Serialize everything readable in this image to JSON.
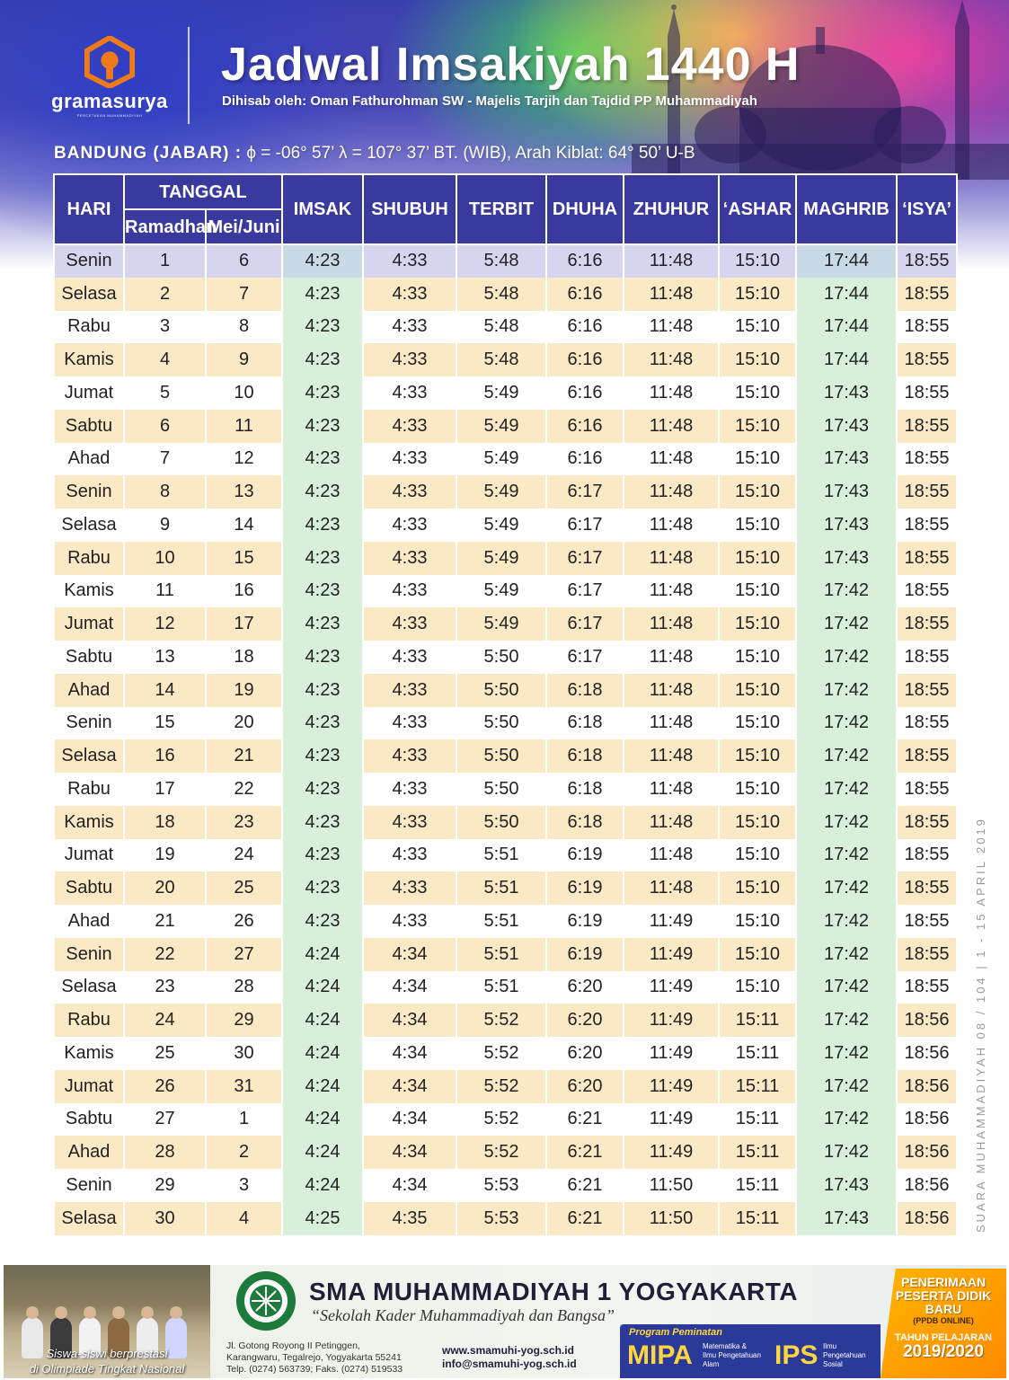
{
  "header": {
    "logo_name": "gramasurya",
    "logo_sub": "PERCETAKAN MUHAMMADIYAH",
    "title": "Jadwal Imsakiyah 1440 H",
    "subtitle": "Dihisab oleh: Oman Fathurohman SW - Majelis Tarjih dan Tajdid PP Muhammadiyah"
  },
  "location": {
    "city": "BANDUNG (JABAR) :",
    "coords": "ϕ = -06° 57’  λ = 107° 37’  BT. (WIB), Arah Kiblat: 64° 50’ U-B"
  },
  "table": {
    "headers": {
      "hari": "HARI",
      "tanggal": "TANGGAL",
      "ramadhan": "Ramadhan",
      "mei_juni": "Mei/Juni",
      "imsak": "IMSAK",
      "shubuh": "SHUBUH",
      "terbit": "TERBIT",
      "dhuha": "DHUHA",
      "zhuhur": "ZHUHUR",
      "ashar": "‘ASHAR",
      "maghrib": "MAGHRIB",
      "isya": "‘ISYA’"
    },
    "rows": [
      {
        "hari": "Senin",
        "ramadhan": "1",
        "masehi": "6",
        "imsak": "4:23",
        "shubuh": "4:33",
        "terbit": "5:48",
        "dhuha": "6:16",
        "zhuhur": "11:48",
        "ashar": "15:10",
        "maghrib": "17:44",
        "isya": "18:55"
      },
      {
        "hari": "Selasa",
        "ramadhan": "2",
        "masehi": "7",
        "imsak": "4:23",
        "shubuh": "4:33",
        "terbit": "5:48",
        "dhuha": "6:16",
        "zhuhur": "11:48",
        "ashar": "15:10",
        "maghrib": "17:44",
        "isya": "18:55"
      },
      {
        "hari": "Rabu",
        "ramadhan": "3",
        "masehi": "8",
        "imsak": "4:23",
        "shubuh": "4:33",
        "terbit": "5:48",
        "dhuha": "6:16",
        "zhuhur": "11:48",
        "ashar": "15:10",
        "maghrib": "17:44",
        "isya": "18:55"
      },
      {
        "hari": "Kamis",
        "ramadhan": "4",
        "masehi": "9",
        "imsak": "4:23",
        "shubuh": "4:33",
        "terbit": "5:48",
        "dhuha": "6:16",
        "zhuhur": "11:48",
        "ashar": "15:10",
        "maghrib": "17:44",
        "isya": "18:55"
      },
      {
        "hari": "Jumat",
        "ramadhan": "5",
        "masehi": "10",
        "imsak": "4:23",
        "shubuh": "4:33",
        "terbit": "5:49",
        "dhuha": "6:16",
        "zhuhur": "11:48",
        "ashar": "15:10",
        "maghrib": "17:43",
        "isya": "18:55"
      },
      {
        "hari": "Sabtu",
        "ramadhan": "6",
        "masehi": "11",
        "imsak": "4:23",
        "shubuh": "4:33",
        "terbit": "5:49",
        "dhuha": "6:16",
        "zhuhur": "11:48",
        "ashar": "15:10",
        "maghrib": "17:43",
        "isya": "18:55"
      },
      {
        "hari": "Ahad",
        "ramadhan": "7",
        "masehi": "12",
        "imsak": "4:23",
        "shubuh": "4:33",
        "terbit": "5:49",
        "dhuha": "6:16",
        "zhuhur": "11:48",
        "ashar": "15:10",
        "maghrib": "17:43",
        "isya": "18:55"
      },
      {
        "hari": "Senin",
        "ramadhan": "8",
        "masehi": "13",
        "imsak": "4:23",
        "shubuh": "4:33",
        "terbit": "5:49",
        "dhuha": "6:17",
        "zhuhur": "11:48",
        "ashar": "15:10",
        "maghrib": "17:43",
        "isya": "18:55"
      },
      {
        "hari": "Selasa",
        "ramadhan": "9",
        "masehi": "14",
        "imsak": "4:23",
        "shubuh": "4:33",
        "terbit": "5:49",
        "dhuha": "6:17",
        "zhuhur": "11:48",
        "ashar": "15:10",
        "maghrib": "17:43",
        "isya": "18:55"
      },
      {
        "hari": "Rabu",
        "ramadhan": "10",
        "masehi": "15",
        "imsak": "4:23",
        "shubuh": "4:33",
        "terbit": "5:49",
        "dhuha": "6:17",
        "zhuhur": "11:48",
        "ashar": "15:10",
        "maghrib": "17:43",
        "isya": "18:55"
      },
      {
        "hari": "Kamis",
        "ramadhan": "11",
        "masehi": "16",
        "imsak": "4:23",
        "shubuh": "4:33",
        "terbit": "5:49",
        "dhuha": "6:17",
        "zhuhur": "11:48",
        "ashar": "15:10",
        "maghrib": "17:42",
        "isya": "18:55"
      },
      {
        "hari": "Jumat",
        "ramadhan": "12",
        "masehi": "17",
        "imsak": "4:23",
        "shubuh": "4:33",
        "terbit": "5:49",
        "dhuha": "6:17",
        "zhuhur": "11:48",
        "ashar": "15:10",
        "maghrib": "17:42",
        "isya": "18:55"
      },
      {
        "hari": "Sabtu",
        "ramadhan": "13",
        "masehi": "18",
        "imsak": "4:23",
        "shubuh": "4:33",
        "terbit": "5:50",
        "dhuha": "6:17",
        "zhuhur": "11:48",
        "ashar": "15:10",
        "maghrib": "17:42",
        "isya": "18:55"
      },
      {
        "hari": "Ahad",
        "ramadhan": "14",
        "masehi": "19",
        "imsak": "4:23",
        "shubuh": "4:33",
        "terbit": "5:50",
        "dhuha": "6:18",
        "zhuhur": "11:48",
        "ashar": "15:10",
        "maghrib": "17:42",
        "isya": "18:55"
      },
      {
        "hari": "Senin",
        "ramadhan": "15",
        "masehi": "20",
        "imsak": "4:23",
        "shubuh": "4:33",
        "terbit": "5:50",
        "dhuha": "6:18",
        "zhuhur": "11:48",
        "ashar": "15:10",
        "maghrib": "17:42",
        "isya": "18:55"
      },
      {
        "hari": "Selasa",
        "ramadhan": "16",
        "masehi": "21",
        "imsak": "4:23",
        "shubuh": "4:33",
        "terbit": "5:50",
        "dhuha": "6:18",
        "zhuhur": "11:48",
        "ashar": "15:10",
        "maghrib": "17:42",
        "isya": "18:55"
      },
      {
        "hari": "Rabu",
        "ramadhan": "17",
        "masehi": "22",
        "imsak": "4:23",
        "shubuh": "4:33",
        "terbit": "5:50",
        "dhuha": "6:18",
        "zhuhur": "11:48",
        "ashar": "15:10",
        "maghrib": "17:42",
        "isya": "18:55"
      },
      {
        "hari": "Kamis",
        "ramadhan": "18",
        "masehi": "23",
        "imsak": "4:23",
        "shubuh": "4:33",
        "terbit": "5:50",
        "dhuha": "6:18",
        "zhuhur": "11:48",
        "ashar": "15:10",
        "maghrib": "17:42",
        "isya": "18:55"
      },
      {
        "hari": "Jumat",
        "ramadhan": "19",
        "masehi": "24",
        "imsak": "4:23",
        "shubuh": "4:33",
        "terbit": "5:51",
        "dhuha": "6:19",
        "zhuhur": "11:48",
        "ashar": "15:10",
        "maghrib": "17:42",
        "isya": "18:55"
      },
      {
        "hari": "Sabtu",
        "ramadhan": "20",
        "masehi": "25",
        "imsak": "4:23",
        "shubuh": "4:33",
        "terbit": "5:51",
        "dhuha": "6:19",
        "zhuhur": "11:48",
        "ashar": "15:10",
        "maghrib": "17:42",
        "isya": "18:55"
      },
      {
        "hari": "Ahad",
        "ramadhan": "21",
        "masehi": "26",
        "imsak": "4:23",
        "shubuh": "4:33",
        "terbit": "5:51",
        "dhuha": "6:19",
        "zhuhur": "11:49",
        "ashar": "15:10",
        "maghrib": "17:42",
        "isya": "18:55"
      },
      {
        "hari": "Senin",
        "ramadhan": "22",
        "masehi": "27",
        "imsak": "4:24",
        "shubuh": "4:34",
        "terbit": "5:51",
        "dhuha": "6:19",
        "zhuhur": "11:49",
        "ashar": "15:10",
        "maghrib": "17:42",
        "isya": "18:55"
      },
      {
        "hari": "Selasa",
        "ramadhan": "23",
        "masehi": "28",
        "imsak": "4:24",
        "shubuh": "4:34",
        "terbit": "5:51",
        "dhuha": "6:20",
        "zhuhur": "11:49",
        "ashar": "15:10",
        "maghrib": "17:42",
        "isya": "18:55"
      },
      {
        "hari": "Rabu",
        "ramadhan": "24",
        "masehi": "29",
        "imsak": "4:24",
        "shubuh": "4:34",
        "terbit": "5:52",
        "dhuha": "6:20",
        "zhuhur": "11:49",
        "ashar": "15:11",
        "maghrib": "17:42",
        "isya": "18:56"
      },
      {
        "hari": "Kamis",
        "ramadhan": "25",
        "masehi": "30",
        "imsak": "4:24",
        "shubuh": "4:34",
        "terbit": "5:52",
        "dhuha": "6:20",
        "zhuhur": "11:49",
        "ashar": "15:11",
        "maghrib": "17:42",
        "isya": "18:56"
      },
      {
        "hari": "Jumat",
        "ramadhan": "26",
        "masehi": "31",
        "imsak": "4:24",
        "shubuh": "4:34",
        "terbit": "5:52",
        "dhuha": "6:20",
        "zhuhur": "11:49",
        "ashar": "15:11",
        "maghrib": "17:42",
        "isya": "18:56"
      },
      {
        "hari": "Sabtu",
        "ramadhan": "27",
        "masehi": "1",
        "imsak": "4:24",
        "shubuh": "4:34",
        "terbit": "5:52",
        "dhuha": "6:21",
        "zhuhur": "11:49",
        "ashar": "15:11",
        "maghrib": "17:42",
        "isya": "18:56"
      },
      {
        "hari": "Ahad",
        "ramadhan": "28",
        "masehi": "2",
        "imsak": "4:24",
        "shubuh": "4:34",
        "terbit": "5:52",
        "dhuha": "6:21",
        "zhuhur": "11:49",
        "ashar": "15:11",
        "maghrib": "17:42",
        "isya": "18:56"
      },
      {
        "hari": "Senin",
        "ramadhan": "29",
        "masehi": "3",
        "imsak": "4:24",
        "shubuh": "4:34",
        "terbit": "5:53",
        "dhuha": "6:21",
        "zhuhur": "11:50",
        "ashar": "15:11",
        "maghrib": "17:43",
        "isya": "18:56"
      },
      {
        "hari": "Selasa",
        "ramadhan": "30",
        "masehi": "4",
        "imsak": "4:25",
        "shubuh": "4:35",
        "terbit": "5:53",
        "dhuha": "6:21",
        "zhuhur": "11:50",
        "ashar": "15:11",
        "maghrib": "17:43",
        "isya": "18:56"
      }
    ]
  },
  "side_text": "SUARA MUHAMMADIYAH 08 / 104 | 1 - 15 APRIL 2019",
  "footer": {
    "photo_caption_1": "Siswa-siswi berprestasi",
    "photo_caption_2": "di Olimpiade Tingkat Nasional",
    "school_name": "SMA MUHAMMADIYAH 1 YOGYAKARTA",
    "tagline": "“Sekolah Kader Muhammadiyah dan Bangsa”",
    "address_1": "Jl. Gotong Royong II Petinggen,",
    "address_2": "Karangwaru, Tegalrejo, Yogyakarta 55241",
    "address_3": "Telp. (0274) 563739; Faks. (0274) 519533",
    "website": "www.smamuhi-yog.sch.id",
    "email": "info@smamuhi-yog.sch.id",
    "program_label": "Program Peminatan",
    "mipa": "MIPA",
    "mipa_desc_1": "Matematika &",
    "mipa_desc_2": "Ilmu Pengetahuan",
    "mipa_desc_3": "Alam",
    "ips": "IPS",
    "ips_desc_1": "Ilmu",
    "ips_desc_2": "Pengetahuan",
    "ips_desc_3": "Sosial",
    "ppdb_1": "PENERIMAAN",
    "ppdb_2": "PESERTA DIDIK BARU",
    "ppdb_3": "(PPDB ONLINE)",
    "ppdb_4": "TAHUN PELAJARAN",
    "ppdb_5": "2019/2020"
  },
  "colors": {
    "header_blue": "#3a399d",
    "row_even": "#fbe9c5",
    "highlight_green": "#d8efd9",
    "ppdb_orange": "#ff9a00",
    "program_blue": "#2b3a98"
  }
}
